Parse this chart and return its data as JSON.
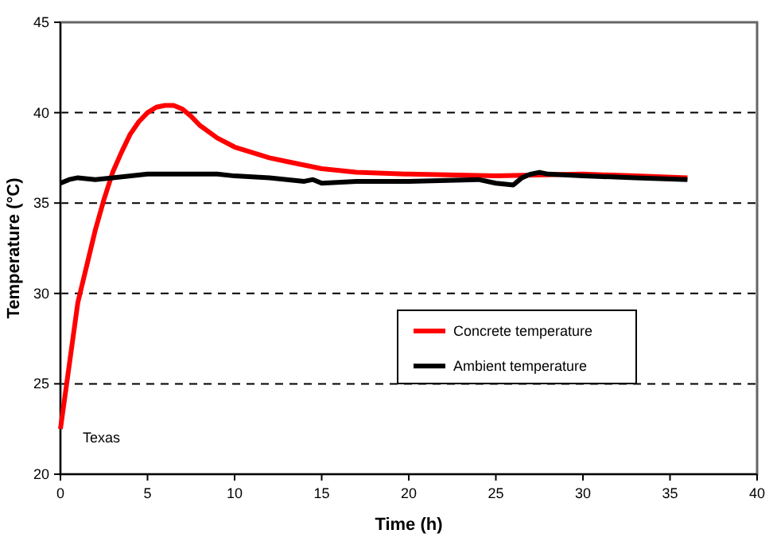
{
  "chart_data": {
    "type": "line",
    "xlabel": "Time (h)",
    "ylabel": "Temperature (°C)",
    "xlim": [
      0,
      40
    ],
    "xticks": [
      0,
      5,
      10,
      15,
      20,
      25,
      30,
      35,
      40
    ],
    "ylim": [
      20,
      45
    ],
    "yticks": [
      20,
      25,
      30,
      35,
      40,
      45
    ],
    "grid": "y",
    "legend": "right",
    "annotations": [
      "Texas"
    ],
    "series": [
      {
        "name": "Concrete temperature",
        "color": "#ff0000",
        "x": [
          0,
          0.5,
          1,
          1.5,
          2,
          2.5,
          3,
          3.5,
          4,
          4.5,
          5,
          5.5,
          6,
          6.5,
          7,
          7.5,
          8,
          9,
          10,
          11,
          12,
          13,
          14,
          15,
          16,
          17,
          20,
          25,
          30,
          33,
          36
        ],
        "values": [
          22.5,
          26,
          29.5,
          31.5,
          33.5,
          35.2,
          36.7,
          37.8,
          38.8,
          39.5,
          40,
          40.3,
          40.4,
          40.4,
          40.2,
          39.8,
          39.3,
          38.6,
          38.1,
          37.8,
          37.5,
          37.3,
          37.1,
          36.9,
          36.8,
          36.7,
          36.6,
          36.5,
          36.6,
          36.5,
          36.4
        ]
      },
      {
        "name": "Ambient temperature",
        "color": "#000000",
        "x": [
          0,
          0.5,
          1,
          2,
          3,
          5,
          7,
          9,
          10,
          12,
          14,
          14.5,
          15,
          17,
          20,
          24,
          25,
          26,
          26.5,
          27,
          27.5,
          28,
          30,
          33,
          36
        ],
        "values": [
          36.1,
          36.3,
          36.4,
          36.3,
          36.4,
          36.6,
          36.6,
          36.6,
          36.5,
          36.4,
          36.2,
          36.3,
          36.1,
          36.2,
          36.2,
          36.3,
          36.1,
          36.0,
          36.4,
          36.6,
          36.7,
          36.6,
          36.5,
          36.4,
          36.3
        ]
      }
    ]
  }
}
